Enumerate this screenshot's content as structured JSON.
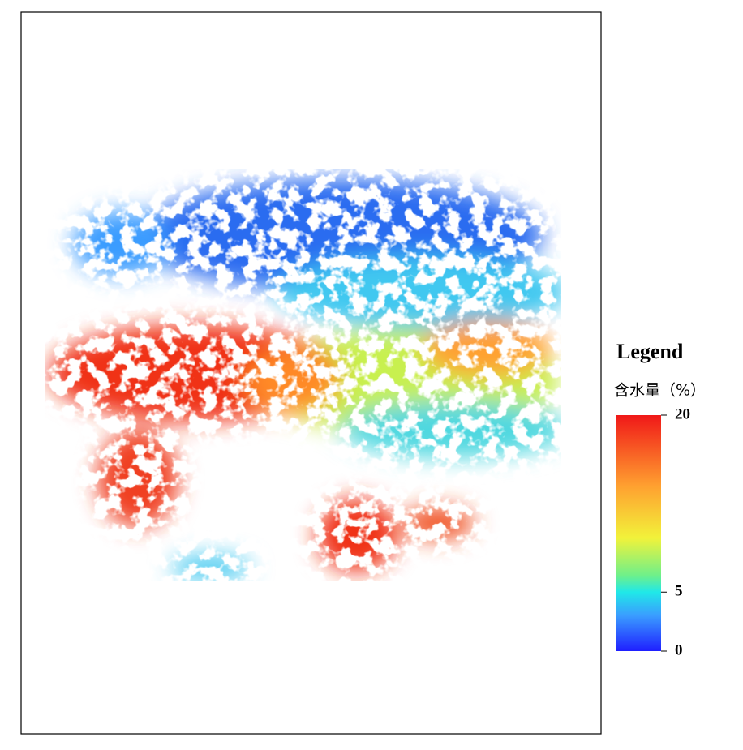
{
  "legend": {
    "title": "Legend",
    "subtitle": "含水量（%）",
    "ylim": [
      0,
      20
    ],
    "ticks": [
      0,
      5,
      20
    ]
  }
}
